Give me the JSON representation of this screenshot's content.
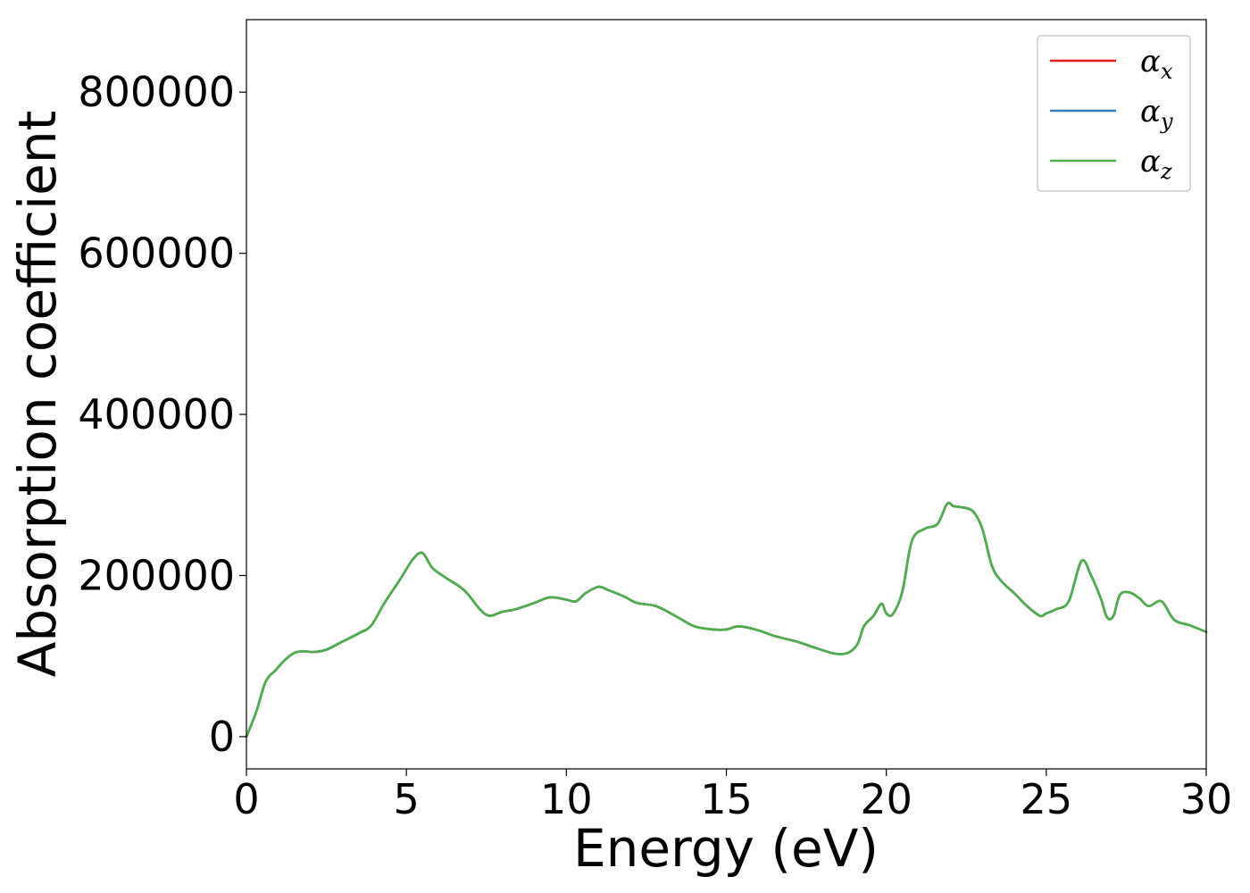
{
  "chart_data": {
    "type": "line",
    "xlabel": "Energy (eV)",
    "ylabel": "Absorption coefficient",
    "xlim": [
      0,
      30
    ],
    "ylim": [
      -40000,
      890000
    ],
    "xticks": [
      0,
      5,
      10,
      15,
      20,
      25,
      30
    ],
    "yticks": [
      0,
      200000,
      400000,
      600000,
      800000
    ],
    "grid": false,
    "legend_position": "top-right",
    "series": [
      {
        "name": "α_x",
        "legend_symbol": "α",
        "legend_subscript": "x",
        "color": "#e41a1c",
        "x": [
          0,
          0.3,
          0.6,
          0.9,
          1.2,
          1.5,
          1.8,
          2.1,
          2.5,
          3.0,
          3.5,
          3.9,
          4.3,
          4.8,
          5.2,
          5.5,
          5.8,
          6.2,
          6.8,
          7.3,
          7.6,
          8.0,
          8.4,
          9.0,
          9.5,
          10.0,
          10.3,
          10.6,
          11.0,
          11.3,
          11.8,
          12.2,
          12.8,
          13.4,
          14.0,
          14.6,
          15.0,
          15.4,
          16.0,
          16.5,
          17.2,
          17.8,
          18.4,
          18.8,
          19.1,
          19.3,
          19.6,
          19.85,
          20.0,
          20.2,
          20.5,
          20.8,
          21.2,
          21.6,
          21.9,
          22.1,
          22.3,
          22.7,
          23.0,
          23.3,
          23.6,
          24.0,
          24.4,
          24.8,
          25.0,
          25.3,
          25.7,
          26.1,
          26.4,
          26.7,
          26.9,
          27.1,
          27.3,
          27.6,
          27.9,
          28.2,
          28.6,
          29.0,
          29.5,
          30.0
        ],
        "y": [
          0,
          30000,
          68000,
          82000,
          95000,
          104000,
          106000,
          105000,
          108000,
          118000,
          128000,
          138000,
          165000,
          195000,
          220000,
          228000,
          210000,
          198000,
          182000,
          158000,
          150000,
          155000,
          158000,
          166000,
          173000,
          170000,
          168000,
          178000,
          186000,
          182000,
          174000,
          166000,
          162000,
          150000,
          137000,
          133000,
          133000,
          137000,
          132000,
          125000,
          118000,
          110000,
          103000,
          104000,
          115000,
          137000,
          150000,
          165000,
          153000,
          152000,
          180000,
          243000,
          258000,
          264000,
          289000,
          286000,
          285000,
          280000,
          258000,
          212000,
          193000,
          178000,
          162000,
          150000,
          153000,
          158000,
          168000,
          218000,
          200000,
          172000,
          148000,
          150000,
          176000,
          179000,
          172000,
          162000,
          168000,
          145000,
          138000,
          130000
        ]
      },
      {
        "name": "α_y",
        "legend_symbol": "α",
        "legend_subscript": "y",
        "color": "#377eb8",
        "x": [
          0,
          0.3,
          0.6,
          0.9,
          1.2,
          1.5,
          1.8,
          2.1,
          2.5,
          3.0,
          3.5,
          3.9,
          4.3,
          4.8,
          5.2,
          5.5,
          5.8,
          6.2,
          6.8,
          7.3,
          7.6,
          8.0,
          8.4,
          9.0,
          9.5,
          10.0,
          10.3,
          10.6,
          11.0,
          11.3,
          11.8,
          12.2,
          12.8,
          13.4,
          14.0,
          14.6,
          15.0,
          15.4,
          16.0,
          16.5,
          17.2,
          17.8,
          18.4,
          18.8,
          19.1,
          19.3,
          19.6,
          19.85,
          20.0,
          20.2,
          20.5,
          20.8,
          21.2,
          21.6,
          21.9,
          22.1,
          22.3,
          22.7,
          23.0,
          23.3,
          23.6,
          24.0,
          24.4,
          24.8,
          25.0,
          25.3,
          25.7,
          26.1,
          26.4,
          26.7,
          26.9,
          27.1,
          27.3,
          27.6,
          27.9,
          28.2,
          28.6,
          29.0,
          29.5,
          30.0
        ],
        "y": [
          0,
          30000,
          68000,
          82000,
          95000,
          104000,
          106000,
          105000,
          108000,
          118000,
          128000,
          138000,
          165000,
          195000,
          220000,
          228000,
          210000,
          198000,
          182000,
          158000,
          150000,
          155000,
          158000,
          166000,
          173000,
          170000,
          168000,
          178000,
          186000,
          182000,
          174000,
          166000,
          162000,
          150000,
          137000,
          133000,
          133000,
          137000,
          132000,
          125000,
          118000,
          110000,
          103000,
          104000,
          115000,
          137000,
          150000,
          165000,
          153000,
          152000,
          180000,
          243000,
          258000,
          264000,
          289000,
          286000,
          285000,
          280000,
          258000,
          212000,
          193000,
          178000,
          162000,
          150000,
          153000,
          158000,
          168000,
          218000,
          200000,
          172000,
          148000,
          150000,
          176000,
          179000,
          172000,
          162000,
          168000,
          145000,
          138000,
          130000
        ]
      },
      {
        "name": "α_z",
        "legend_symbol": "α",
        "legend_subscript": "z",
        "color": "#4daf4a",
        "x": [
          0,
          0.3,
          0.6,
          0.9,
          1.2,
          1.5,
          1.8,
          2.1,
          2.5,
          3.0,
          3.5,
          3.9,
          4.3,
          4.8,
          5.2,
          5.5,
          5.8,
          6.2,
          6.8,
          7.3,
          7.6,
          8.0,
          8.4,
          9.0,
          9.5,
          10.0,
          10.3,
          10.6,
          11.0,
          11.3,
          11.8,
          12.2,
          12.8,
          13.4,
          14.0,
          14.6,
          15.0,
          15.4,
          16.0,
          16.5,
          17.2,
          17.8,
          18.4,
          18.8,
          19.1,
          19.3,
          19.6,
          19.85,
          20.0,
          20.2,
          20.5,
          20.8,
          21.2,
          21.6,
          21.9,
          22.1,
          22.3,
          22.7,
          23.0,
          23.3,
          23.6,
          24.0,
          24.4,
          24.8,
          25.0,
          25.3,
          25.7,
          26.1,
          26.4,
          26.7,
          26.9,
          27.1,
          27.3,
          27.6,
          27.9,
          28.2,
          28.6,
          29.0,
          29.5,
          30.0
        ],
        "y": [
          0,
          30000,
          68000,
          82000,
          95000,
          104000,
          106000,
          105000,
          108000,
          118000,
          128000,
          138000,
          165000,
          195000,
          220000,
          228000,
          210000,
          198000,
          182000,
          158000,
          150000,
          155000,
          158000,
          166000,
          173000,
          170000,
          168000,
          178000,
          186000,
          182000,
          174000,
          166000,
          162000,
          150000,
          137000,
          133000,
          133000,
          137000,
          132000,
          125000,
          118000,
          110000,
          103000,
          104000,
          115000,
          137000,
          150000,
          165000,
          153000,
          152000,
          180000,
          243000,
          258000,
          264000,
          289000,
          286000,
          285000,
          280000,
          258000,
          212000,
          193000,
          178000,
          162000,
          150000,
          153000,
          158000,
          168000,
          218000,
          200000,
          172000,
          148000,
          150000,
          176000,
          179000,
          172000,
          162000,
          168000,
          145000,
          138000,
          130000
        ]
      }
    ]
  }
}
